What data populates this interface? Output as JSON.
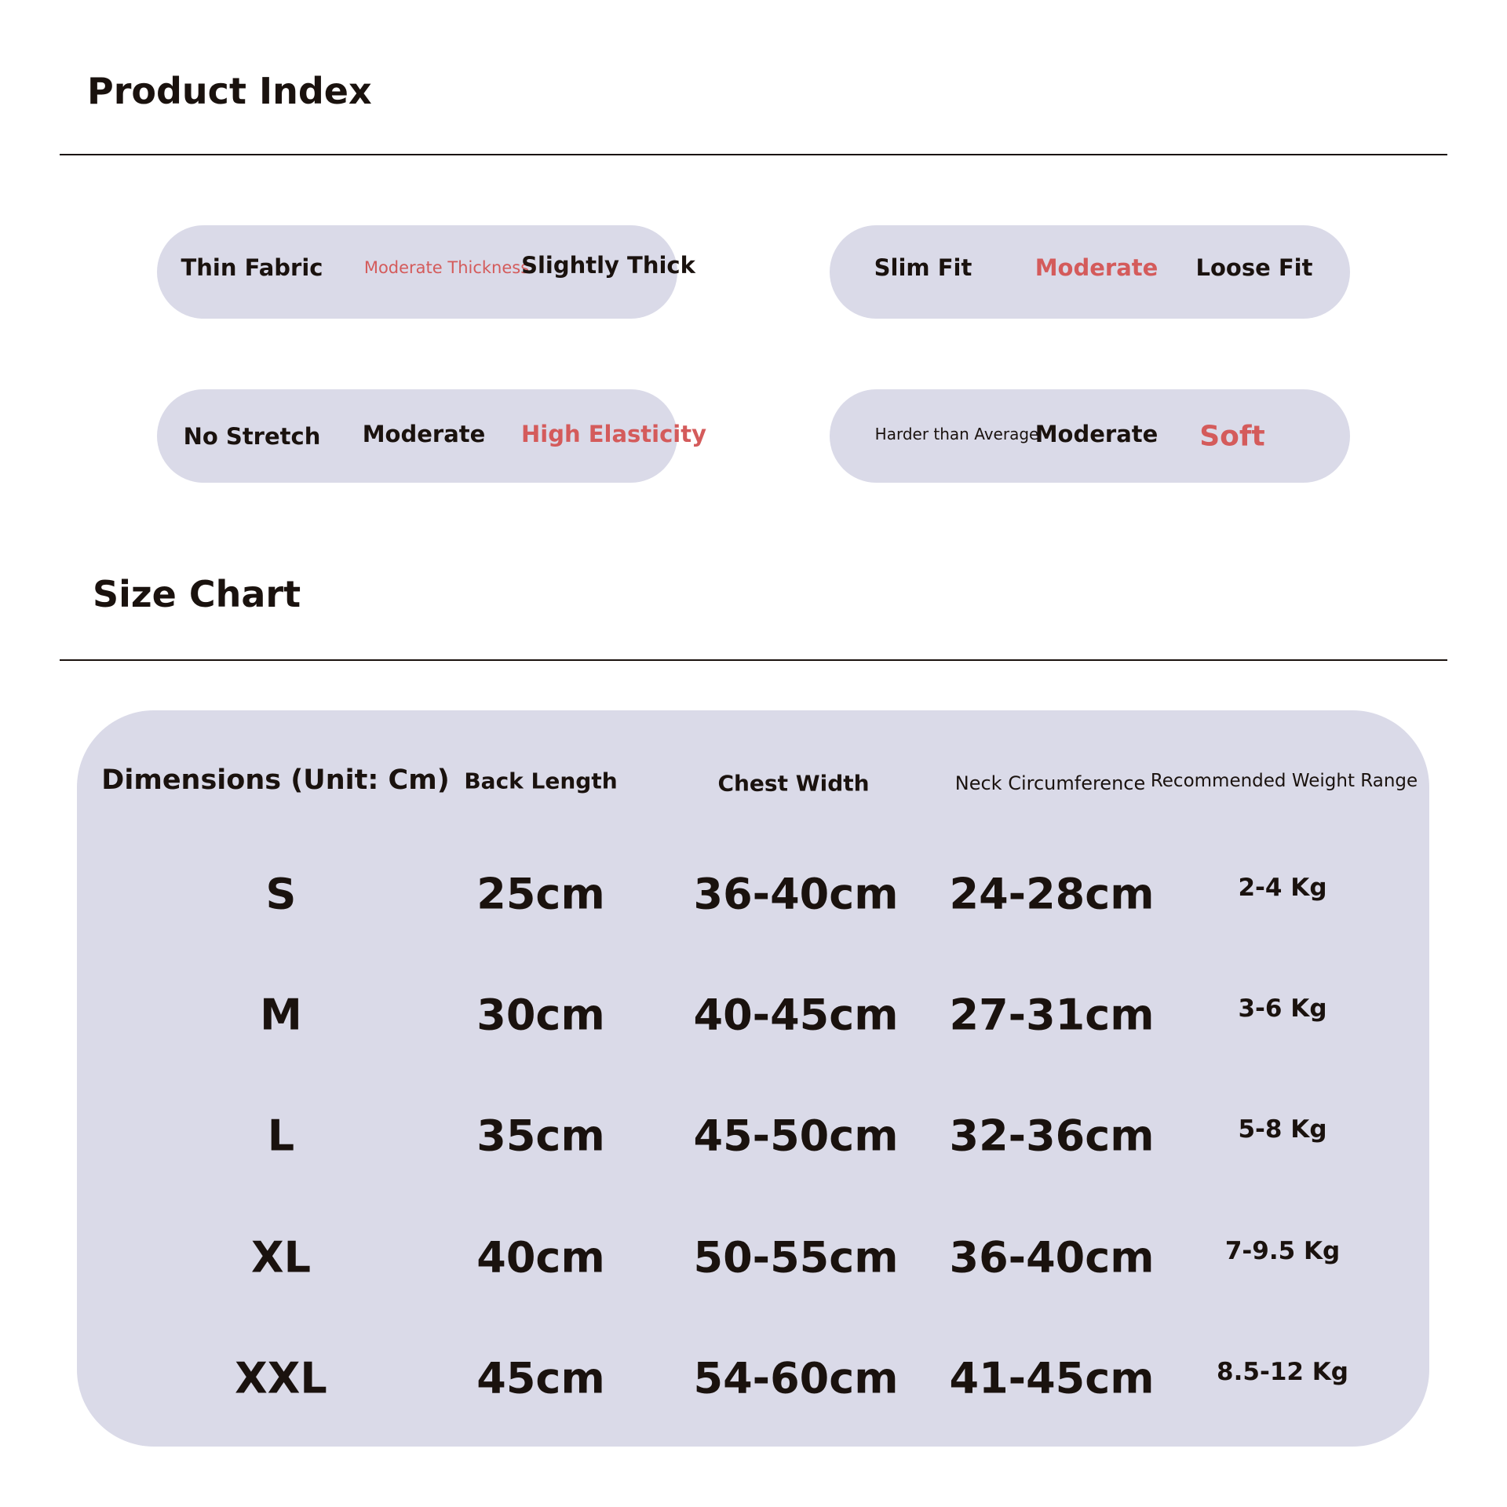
{
  "product_index": {
    "title": "Product Index",
    "thickness": [
      "Thin Fabric",
      "Moderate Thickness",
      "Slightly Thick"
    ],
    "fit": [
      "Slim Fit",
      "Moderate",
      "Loose Fit"
    ],
    "elasticity": [
      "No Stretch",
      "Moderate",
      "High Elasticity"
    ],
    "softness": [
      "Harder than Average",
      "Moderate",
      "Soft"
    ],
    "selected": {
      "thickness": "Moderate Thickness",
      "fit": "Moderate",
      "elasticity": "High Elasticity",
      "softness": "Soft"
    },
    "highlight_color": "#d45b5b",
    "pill_color": "#dadae8"
  },
  "size_chart": {
    "title": "Size Chart",
    "headers": [
      "Dimensions (Unit: Cm)",
      "Back Length",
      "Chest Width",
      "Neck Circumference",
      "Recommended Weight Range"
    ],
    "rows": [
      [
        "S",
        "25cm",
        "36-40cm",
        "24-28cm",
        "2-4 Kg"
      ],
      [
        "M",
        "30cm",
        "40-45cm",
        "27-31cm",
        "3-6 Kg"
      ],
      [
        "L",
        "35cm",
        "45-50cm",
        "32-36cm",
        "5-8 Kg"
      ],
      [
        "XL",
        "40cm",
        "50-55cm",
        "36-40cm",
        "7-9.5 Kg"
      ],
      [
        "XXL",
        "45cm",
        "54-60cm",
        "41-45cm",
        "8.5-12 Kg"
      ]
    ]
  }
}
